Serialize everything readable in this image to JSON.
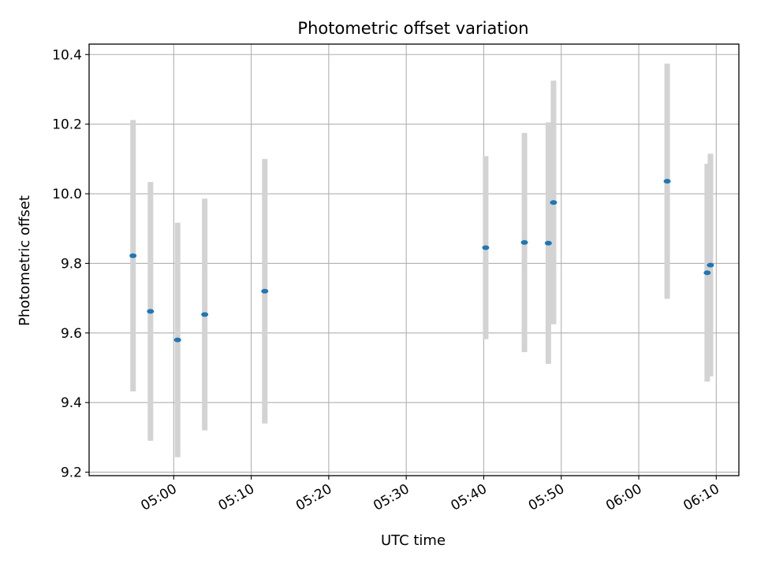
{
  "chart_data": {
    "type": "scatter",
    "title": "Photometric offset variation",
    "xlabel": "UTC time",
    "ylabel": "Photometric offset",
    "x_ticks": [
      "05:00",
      "05:10",
      "05:20",
      "05:30",
      "05:40",
      "05:50",
      "06:00",
      "06:10"
    ],
    "y_ticks": [
      "9.2",
      "9.4",
      "9.6",
      "9.8",
      "10.0",
      "10.2",
      "10.4"
    ],
    "xlim": [
      "04:49:05",
      "06:12:55"
    ],
    "ylim": [
      9.19,
      10.43
    ],
    "grid": true,
    "errorbar_color": "#d3d3d3",
    "point_color": "#1f77b4",
    "points": [
      {
        "x": "04:54:45",
        "y": 9.822,
        "yerr": 0.39
      },
      {
        "x": "04:57:00",
        "y": 9.662,
        "yerr": 0.372
      },
      {
        "x": "05:00:30",
        "y": 9.58,
        "yerr": 0.337
      },
      {
        "x": "05:04:00",
        "y": 9.653,
        "yerr": 0.333
      },
      {
        "x": "05:11:45",
        "y": 9.72,
        "yerr": 0.38
      },
      {
        "x": "05:40:15",
        "y": 9.845,
        "yerr": 0.263
      },
      {
        "x": "05:45:15",
        "y": 9.86,
        "yerr": 0.315
      },
      {
        "x": "05:48:20",
        "y": 9.858,
        "yerr": 0.347
      },
      {
        "x": "05:49:00",
        "y": 9.975,
        "yerr": 0.35
      },
      {
        "x": "06:03:40",
        "y": 10.036,
        "yerr": 0.338
      },
      {
        "x": "06:08:50",
        "y": 9.773,
        "yerr": 0.313
      },
      {
        "x": "06:09:15",
        "y": 9.795,
        "yerr": 0.32
      }
    ]
  }
}
